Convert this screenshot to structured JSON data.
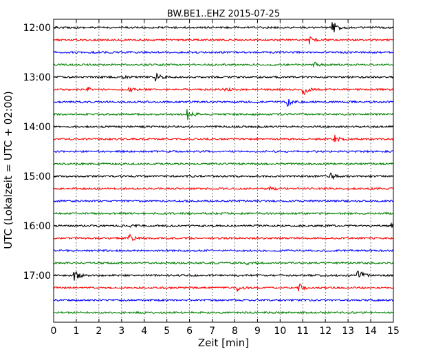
{
  "chart_data": {
    "type": "line",
    "title": "BW.BE1..EHZ 2015-07-25",
    "xlabel": "Zeit  [min]",
    "ylabel": "UTC (Lokalzeit = UTC + 02:00)",
    "xlim": [
      0,
      15
    ],
    "x_ticks": [
      "0",
      "1",
      "2",
      "3",
      "4",
      "5",
      "6",
      "7",
      "8",
      "9",
      "10",
      "11",
      "12",
      "13",
      "14",
      "15"
    ],
    "y_ticks": [
      "12:00",
      "13:00",
      "14:00",
      "15:00",
      "16:00",
      "17:00"
    ],
    "grid": "vertical dotted",
    "trace_colors": [
      "#000000",
      "#ff0000",
      "#0000ff",
      "#008000"
    ],
    "series": [
      {
        "start": "12:00",
        "events": [
          {
            "min": 12.3,
            "amp": 1.0
          }
        ]
      },
      {
        "start": "12:15",
        "events": [
          {
            "min": 11.3,
            "amp": 0.6
          }
        ]
      },
      {
        "start": "12:30",
        "events": []
      },
      {
        "start": "12:45",
        "events": [
          {
            "min": 11.5,
            "amp": 0.3
          }
        ]
      },
      {
        "start": "13:00",
        "events": [
          {
            "min": 4.5,
            "amp": 0.55
          },
          {
            "min": 3.0,
            "amp": 0.3
          }
        ]
      },
      {
        "start": "13:15",
        "events": [
          {
            "min": 11.0,
            "amp": 0.9
          },
          {
            "min": 1.5,
            "amp": 0.3
          },
          {
            "min": 3.3,
            "amp": 0.3
          },
          {
            "min": 7.5,
            "amp": 0.25
          }
        ]
      },
      {
        "start": "13:30",
        "events": [
          {
            "min": 10.3,
            "amp": 0.7
          }
        ]
      },
      {
        "start": "13:45",
        "events": [
          {
            "min": 5.9,
            "amp": 0.8
          }
        ]
      },
      {
        "start": "14:00",
        "events": []
      },
      {
        "start": "14:15",
        "events": [
          {
            "min": 12.4,
            "amp": 0.55
          }
        ]
      },
      {
        "start": "14:30",
        "events": []
      },
      {
        "start": "14:45",
        "events": []
      },
      {
        "start": "15:00",
        "events": [
          {
            "min": 12.2,
            "amp": 0.5
          }
        ]
      },
      {
        "start": "15:15",
        "events": [
          {
            "min": 9.5,
            "amp": 0.55
          }
        ]
      },
      {
        "start": "15:30",
        "events": []
      },
      {
        "start": "15:45",
        "events": []
      },
      {
        "start": "16:00",
        "events": [
          {
            "min": 3.3,
            "amp": 0.35
          },
          {
            "min": 14.9,
            "amp": 0.35
          }
        ]
      },
      {
        "start": "16:15",
        "events": [
          {
            "min": 3.3,
            "amp": 0.6
          }
        ]
      },
      {
        "start": "16:30",
        "events": []
      },
      {
        "start": "16:45",
        "events": [
          {
            "min": 8.5,
            "amp": 0.25
          }
        ]
      },
      {
        "start": "17:00",
        "events": [
          {
            "min": 0.9,
            "amp": 0.8
          },
          {
            "min": 13.4,
            "amp": 1.0
          }
        ]
      },
      {
        "start": "17:15",
        "events": [
          {
            "min": 8.1,
            "amp": 0.5
          },
          {
            "min": 10.8,
            "amp": 0.55
          }
        ]
      },
      {
        "start": "17:30",
        "events": []
      },
      {
        "start": "17:45",
        "events": []
      }
    ]
  }
}
